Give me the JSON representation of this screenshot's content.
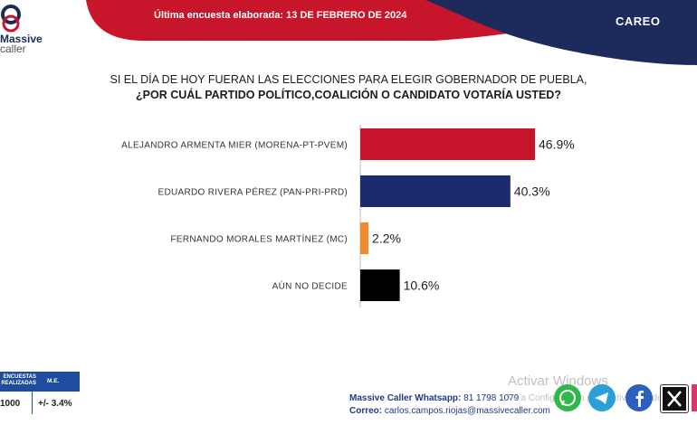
{
  "header": {
    "survey_date": "Última encuesta elaborada: 13 DE FEBRERO DE 2024",
    "section_label": "CAREO",
    "logo_line1": "Massive",
    "logo_line2": "caller",
    "colors": {
      "red": "#c7162b",
      "navy": "#1c2b5c"
    }
  },
  "question": {
    "line1": "SI EL DÍA DE HOY FUERAN LAS ELECCIONES PARA ELEGIR GOBERNADOR DE PUEBLA,",
    "line2": "¿POR CUÁL PARTIDO POLÍTICO,COALICIÓN  O CANDIDATO VOTARÍA USTED?"
  },
  "chart_data": {
    "type": "bar",
    "orientation": "horizontal",
    "categories": [
      "ALEJANDRO ARMENTA MIER (MORENA-PT-PVEM)",
      "EDUARDO RIVERA PÉREZ (PAN-PRI-PRD)",
      "FERNANDO MORALES MARTÍNEZ (MC)",
      "AÚN NO DECIDE"
    ],
    "values": [
      46.9,
      40.3,
      2.2,
      10.6
    ],
    "value_labels": [
      "46.9%",
      "40.3%",
      "2.2%",
      "10.6%"
    ],
    "colors": [
      "#c7162b",
      "#1c2b6b",
      "#f08a2f",
      "#000000"
    ],
    "xlim": [
      0,
      100
    ],
    "grid": false,
    "legend": "none"
  },
  "stats": {
    "header1": "ENCUESTAS\nREALIZADAS",
    "header2": "M.E.",
    "value1": "1000",
    "value2": "+/- 3.4%"
  },
  "contact": {
    "whatsapp_label": "Massive Caller Whatsapp:",
    "whatsapp_number": "81 1798 1079",
    "email_label": "Correo:",
    "email": "carlos.campos.riojas@massivecaller.com"
  },
  "watermark": {
    "line1": "Activar Windows",
    "line2": "Ve a Configuración para activar Windows."
  },
  "social": [
    "whatsapp-icon",
    "telegram-icon",
    "facebook-icon",
    "x-icon",
    "instagram-icon"
  ]
}
